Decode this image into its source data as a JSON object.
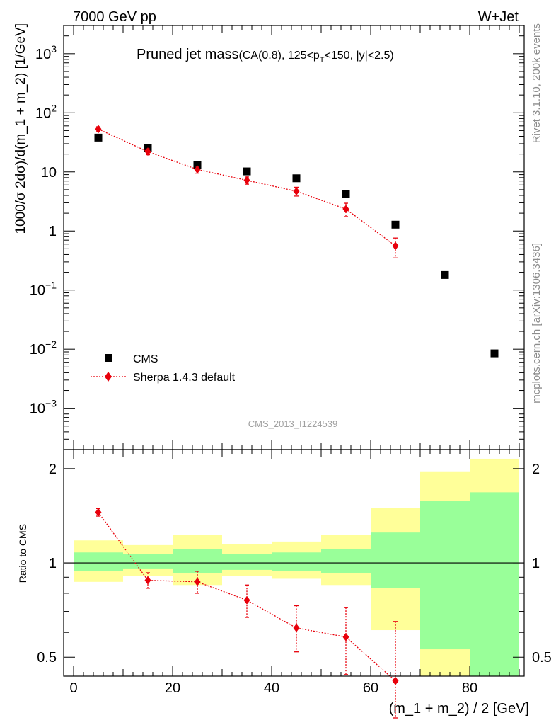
{
  "header": {
    "left": "7000 GeV pp",
    "right": "W+Jet",
    "title_main": "Pruned jet mass",
    "title_detail_a": "(CA(0.8), 125<p",
    "title_detail_sub": "T",
    "title_detail_b": "<150, |y|<2.5)",
    "side_top": "Rivet 3.1.10,  200k events",
    "side_bottom": "mcplots.cern.ch [arXiv:1306.3436]",
    "watermark": "CMS_2013_I1224539"
  },
  "colors": {
    "data": "#000000",
    "mc": "#e8000b",
    "band_inner": "#99ff99",
    "band_outer": "#ffff99"
  },
  "chart_data": [
    {
      "type": "scatter",
      "panel": "main",
      "ylabel": "1000/σ 2dσ)/d(m_1 + m_2) [1/GeV]",
      "yscale": "log",
      "xlim": [
        -2,
        91
      ],
      "ylim": [
        0.0002,
        3000
      ],
      "yticks": [
        {
          "value": 1000,
          "base": "10",
          "exp": "3"
        },
        {
          "value": 100,
          "base": "10",
          "exp": "2"
        },
        {
          "value": 10,
          "base": "10",
          "exp": ""
        },
        {
          "value": 1,
          "base": "1",
          "exp": ""
        },
        {
          "value": 0.1,
          "base": "10",
          "exp": "−1"
        },
        {
          "value": 0.01,
          "base": "10",
          "exp": "−2"
        },
        {
          "value": 0.001,
          "base": "10",
          "exp": "−3"
        }
      ],
      "legend": {
        "position": "lower-left",
        "entries": [
          "CMS",
          "Sherpa 1.4.3 default"
        ]
      },
      "series": [
        {
          "name": "CMS",
          "marker": "square",
          "x": [
            5,
            15,
            25,
            35,
            45,
            55,
            65,
            75,
            85
          ],
          "y": [
            38,
            25.5,
            13,
            10.2,
            7.8,
            4.2,
            1.28,
            0.18,
            0.0085
          ]
        },
        {
          "name": "Sherpa 1.4.3 default",
          "marker": "diamond",
          "x": [
            5,
            15,
            25,
            35,
            45,
            55,
            65
          ],
          "y": [
            53,
            22,
            11,
            7.2,
            4.7,
            2.35,
            0.56
          ],
          "err_low": [
            5,
            2.5,
            1.5,
            1,
            0.8,
            0.6,
            0.21
          ],
          "err_high": [
            5,
            2.5,
            1.5,
            1,
            0.8,
            0.6,
            0.2
          ]
        }
      ]
    },
    {
      "type": "line",
      "panel": "ratio",
      "xlabel": "(m_1 + m_2) / 2 [GeV]",
      "ylabel": "Ratio to CMS",
      "yscale": "log",
      "xlim": [
        -2,
        91
      ],
      "ylim": [
        0.435,
        2.3
      ],
      "xticks": [
        0,
        20,
        40,
        60,
        80
      ],
      "yticks": [
        0.5,
        1,
        2
      ],
      "reference_line": 1,
      "bands": {
        "x_edges": [
          0,
          10,
          20,
          30,
          40,
          50,
          60,
          70,
          80,
          90
        ],
        "inner_low": [
          0.94,
          0.96,
          0.93,
          0.95,
          0.94,
          0.93,
          0.83,
          0.53,
          0.43
        ],
        "inner_high": [
          1.08,
          1.07,
          1.11,
          1.07,
          1.08,
          1.11,
          1.25,
          1.58,
          1.68
        ],
        "outer_low": [
          0.87,
          0.91,
          0.85,
          0.91,
          0.89,
          0.85,
          0.61,
          0.43,
          0.43
        ],
        "outer_high": [
          1.18,
          1.14,
          1.23,
          1.15,
          1.17,
          1.23,
          1.5,
          1.96,
          2.15
        ]
      },
      "series": [
        {
          "name": "Sherpa 1.4.3 default",
          "x": [
            5,
            15,
            25,
            35,
            45,
            55,
            65
          ],
          "y": [
            1.45,
            0.88,
            0.87,
            0.76,
            0.62,
            0.58,
            0.42
          ],
          "err_low": [
            0.04,
            0.05,
            0.07,
            0.09,
            0.1,
            0.14,
            0.1
          ],
          "err_high": [
            0.04,
            0.05,
            0.07,
            0.09,
            0.11,
            0.14,
            0.23
          ]
        }
      ]
    }
  ]
}
